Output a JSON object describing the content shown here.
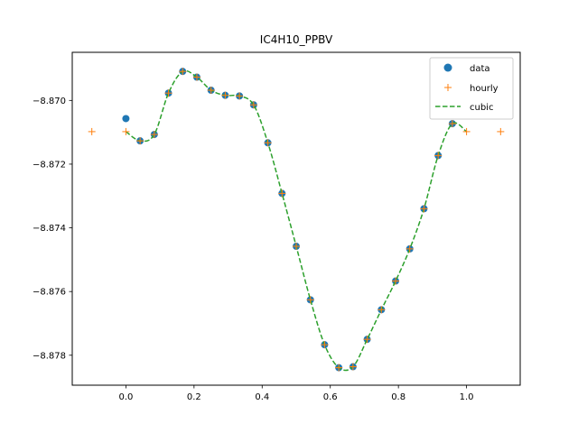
{
  "chart_data": {
    "type": "line",
    "title": "IC4H10_PPBV",
    "xlabel": "",
    "ylabel": "",
    "xlim": [
      -0.1575,
      1.1575
    ],
    "ylim": [
      -8.87894,
      -8.86849
    ],
    "xticks": [
      0.0,
      0.2,
      0.4,
      0.6,
      0.8,
      1.0
    ],
    "xtick_labels": [
      "0.0",
      "0.2",
      "0.4",
      "0.6",
      "0.8",
      "1.0"
    ],
    "yticks": [
      -8.87,
      -8.872,
      -8.874,
      -8.876,
      -8.878
    ],
    "ytick_labels": [
      "−8.870",
      "−8.872",
      "−8.874",
      "−8.876",
      "−8.878"
    ],
    "grid": false,
    "legend_position": "top-right",
    "series": [
      {
        "name": "data",
        "style": "marker-circle",
        "color": "#1f77b4",
        "x": [
          0.0,
          0.0417,
          0.0833,
          0.125,
          0.1667,
          0.2083,
          0.25,
          0.2917,
          0.3333,
          0.375,
          0.4167,
          0.4583,
          0.5,
          0.5417,
          0.5833,
          0.625,
          0.6667,
          0.7083,
          0.75,
          0.7917,
          0.8333,
          0.875,
          0.9167,
          0.9583
        ],
        "y": [
          -8.87057,
          -8.87127,
          -8.87107,
          -8.86977,
          -8.86909,
          -8.86927,
          -8.86968,
          -8.86984,
          -8.86986,
          -8.87014,
          -8.87133,
          -8.87292,
          -8.87458,
          -8.87626,
          -8.87767,
          -8.87839,
          -8.87836,
          -8.8775,
          -8.87657,
          -8.87567,
          -8.87466,
          -8.8734,
          -8.87173,
          -8.87073
        ]
      },
      {
        "name": "hourly",
        "style": "marker-plus",
        "color": "#ff7f0e",
        "x": [
          -0.1,
          0.0,
          0.0417,
          0.0833,
          0.125,
          0.1667,
          0.2083,
          0.25,
          0.2917,
          0.3333,
          0.375,
          0.4167,
          0.4583,
          0.5,
          0.5417,
          0.5833,
          0.625,
          0.6667,
          0.7083,
          0.75,
          0.7917,
          0.8333,
          0.875,
          0.9167,
          0.9583,
          1.0,
          1.1
        ],
        "y": [
          -8.87098,
          -8.87098,
          -8.87127,
          -8.87107,
          -8.86977,
          -8.86909,
          -8.86927,
          -8.86968,
          -8.86984,
          -8.86986,
          -8.87014,
          -8.87133,
          -8.87292,
          -8.87458,
          -8.87626,
          -8.87767,
          -8.87839,
          -8.87836,
          -8.8775,
          -8.87657,
          -8.87567,
          -8.87466,
          -8.8734,
          -8.87173,
          -8.87073,
          -8.87098,
          -8.87098
        ]
      },
      {
        "name": "cubic",
        "style": "line-dashed",
        "color": "#2ca02c",
        "x": [
          0.0,
          0.0417,
          0.0833,
          0.125,
          0.1667,
          0.2083,
          0.25,
          0.2917,
          0.3333,
          0.375,
          0.4167,
          0.4583,
          0.5,
          0.5417,
          0.5833,
          0.625,
          0.6667,
          0.7083,
          0.75,
          0.7917,
          0.8333,
          0.875,
          0.9167,
          0.9583,
          1.0
        ],
        "y": [
          -8.87098,
          -8.87127,
          -8.87107,
          -8.86977,
          -8.86909,
          -8.86927,
          -8.86968,
          -8.86984,
          -8.86986,
          -8.87014,
          -8.87133,
          -8.87292,
          -8.87458,
          -8.87626,
          -8.87767,
          -8.87839,
          -8.87836,
          -8.8775,
          -8.87657,
          -8.87567,
          -8.87466,
          -8.8734,
          -8.87173,
          -8.87073,
          -8.87098
        ]
      }
    ]
  }
}
